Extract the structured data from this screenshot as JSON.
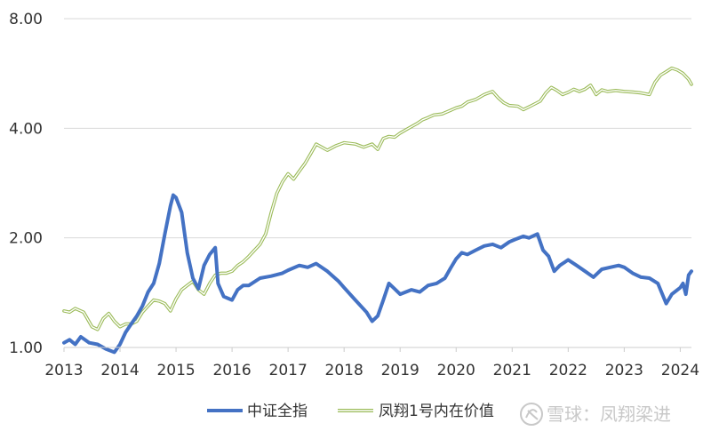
{
  "chart_data": {
    "type": "line",
    "title": "",
    "xlabel": "",
    "ylabel": "",
    "y_scale": "log2",
    "ylim": [
      1.0,
      8.0
    ],
    "xlim": [
      2013.0,
      2024.2
    ],
    "y_ticks": [
      "1.00",
      "2.00",
      "4.00",
      "8.00"
    ],
    "x_ticks": [
      "2013",
      "2014",
      "2015",
      "2016",
      "2017",
      "2018",
      "2019",
      "2020",
      "2021",
      "2022",
      "2023",
      "2024"
    ],
    "grid": "horizontal",
    "legend_position": "bottom",
    "series": [
      {
        "name": "中证全指",
        "color": "#4472c4",
        "style": "solid-thick",
        "points": [
          [
            2013.0,
            1.03
          ],
          [
            2013.1,
            1.05
          ],
          [
            2013.2,
            1.02
          ],
          [
            2013.3,
            1.07
          ],
          [
            2013.45,
            1.03
          ],
          [
            2013.6,
            1.02
          ],
          [
            2013.75,
            0.99
          ],
          [
            2013.9,
            0.97
          ],
          [
            2014.0,
            1.02
          ],
          [
            2014.1,
            1.1
          ],
          [
            2014.2,
            1.16
          ],
          [
            2014.3,
            1.22
          ],
          [
            2014.4,
            1.3
          ],
          [
            2014.5,
            1.42
          ],
          [
            2014.6,
            1.5
          ],
          [
            2014.7,
            1.7
          ],
          [
            2014.8,
            2.05
          ],
          [
            2014.9,
            2.45
          ],
          [
            2014.95,
            2.62
          ],
          [
            2015.0,
            2.58
          ],
          [
            2015.1,
            2.35
          ],
          [
            2015.2,
            1.82
          ],
          [
            2015.3,
            1.55
          ],
          [
            2015.4,
            1.45
          ],
          [
            2015.5,
            1.68
          ],
          [
            2015.6,
            1.8
          ],
          [
            2015.7,
            1.88
          ],
          [
            2015.75,
            1.5
          ],
          [
            2015.85,
            1.38
          ],
          [
            2016.0,
            1.35
          ],
          [
            2016.1,
            1.44
          ],
          [
            2016.2,
            1.48
          ],
          [
            2016.3,
            1.48
          ],
          [
            2016.5,
            1.55
          ],
          [
            2016.7,
            1.57
          ],
          [
            2016.9,
            1.6
          ],
          [
            2017.0,
            1.63
          ],
          [
            2017.2,
            1.68
          ],
          [
            2017.35,
            1.66
          ],
          [
            2017.5,
            1.7
          ],
          [
            2017.7,
            1.62
          ],
          [
            2017.9,
            1.52
          ],
          [
            2018.0,
            1.46
          ],
          [
            2018.2,
            1.35
          ],
          [
            2018.4,
            1.25
          ],
          [
            2018.5,
            1.18
          ],
          [
            2018.6,
            1.22
          ],
          [
            2018.7,
            1.35
          ],
          [
            2018.8,
            1.5
          ],
          [
            2018.9,
            1.45
          ],
          [
            2019.0,
            1.4
          ],
          [
            2019.1,
            1.42
          ],
          [
            2019.2,
            1.44
          ],
          [
            2019.35,
            1.42
          ],
          [
            2019.5,
            1.48
          ],
          [
            2019.65,
            1.5
          ],
          [
            2019.8,
            1.55
          ],
          [
            2019.9,
            1.65
          ],
          [
            2020.0,
            1.75
          ],
          [
            2020.1,
            1.82
          ],
          [
            2020.2,
            1.8
          ],
          [
            2020.35,
            1.85
          ],
          [
            2020.5,
            1.9
          ],
          [
            2020.65,
            1.92
          ],
          [
            2020.8,
            1.88
          ],
          [
            2020.95,
            1.95
          ],
          [
            2021.05,
            1.98
          ],
          [
            2021.2,
            2.02
          ],
          [
            2021.3,
            2.0
          ],
          [
            2021.45,
            2.05
          ],
          [
            2021.55,
            1.85
          ],
          [
            2021.65,
            1.78
          ],
          [
            2021.75,
            1.62
          ],
          [
            2021.85,
            1.68
          ],
          [
            2022.0,
            1.74
          ],
          [
            2022.15,
            1.68
          ],
          [
            2022.3,
            1.62
          ],
          [
            2022.45,
            1.56
          ],
          [
            2022.6,
            1.64
          ],
          [
            2022.75,
            1.66
          ],
          [
            2022.9,
            1.68
          ],
          [
            2023.0,
            1.66
          ],
          [
            2023.15,
            1.6
          ],
          [
            2023.3,
            1.56
          ],
          [
            2023.45,
            1.55
          ],
          [
            2023.6,
            1.5
          ],
          [
            2023.75,
            1.32
          ],
          [
            2023.85,
            1.4
          ],
          [
            2024.0,
            1.46
          ],
          [
            2024.05,
            1.5
          ],
          [
            2024.1,
            1.4
          ],
          [
            2024.15,
            1.58
          ],
          [
            2024.2,
            1.62
          ]
        ]
      },
      {
        "name": "凤翔1号内在价值",
        "color": "#9bbb59",
        "style": "double",
        "points": [
          [
            2013.0,
            1.26
          ],
          [
            2013.1,
            1.25
          ],
          [
            2013.2,
            1.28
          ],
          [
            2013.35,
            1.25
          ],
          [
            2013.5,
            1.14
          ],
          [
            2013.6,
            1.12
          ],
          [
            2013.7,
            1.2
          ],
          [
            2013.8,
            1.24
          ],
          [
            2013.9,
            1.18
          ],
          [
            2014.0,
            1.14
          ],
          [
            2014.1,
            1.16
          ],
          [
            2014.2,
            1.16
          ],
          [
            2014.3,
            1.18
          ],
          [
            2014.4,
            1.25
          ],
          [
            2014.5,
            1.3
          ],
          [
            2014.6,
            1.35
          ],
          [
            2014.7,
            1.34
          ],
          [
            2014.8,
            1.32
          ],
          [
            2014.9,
            1.26
          ],
          [
            2015.0,
            1.36
          ],
          [
            2015.1,
            1.44
          ],
          [
            2015.2,
            1.48
          ],
          [
            2015.3,
            1.52
          ],
          [
            2015.4,
            1.44
          ],
          [
            2015.5,
            1.4
          ],
          [
            2015.6,
            1.5
          ],
          [
            2015.7,
            1.58
          ],
          [
            2015.8,
            1.6
          ],
          [
            2015.9,
            1.6
          ],
          [
            2016.0,
            1.62
          ],
          [
            2016.1,
            1.68
          ],
          [
            2016.2,
            1.72
          ],
          [
            2016.3,
            1.78
          ],
          [
            2016.5,
            1.92
          ],
          [
            2016.6,
            2.05
          ],
          [
            2016.7,
            2.35
          ],
          [
            2016.8,
            2.65
          ],
          [
            2016.9,
            2.85
          ],
          [
            2017.0,
            3.0
          ],
          [
            2017.1,
            2.9
          ],
          [
            2017.2,
            3.05
          ],
          [
            2017.3,
            3.2
          ],
          [
            2017.4,
            3.4
          ],
          [
            2017.5,
            3.62
          ],
          [
            2017.6,
            3.55
          ],
          [
            2017.7,
            3.48
          ],
          [
            2017.85,
            3.58
          ],
          [
            2018.0,
            3.65
          ],
          [
            2018.2,
            3.62
          ],
          [
            2018.35,
            3.55
          ],
          [
            2018.5,
            3.62
          ],
          [
            2018.6,
            3.5
          ],
          [
            2018.7,
            3.75
          ],
          [
            2018.8,
            3.8
          ],
          [
            2018.9,
            3.78
          ],
          [
            2019.0,
            3.88
          ],
          [
            2019.15,
            4.0
          ],
          [
            2019.3,
            4.12
          ],
          [
            2019.4,
            4.22
          ],
          [
            2019.5,
            4.28
          ],
          [
            2019.6,
            4.35
          ],
          [
            2019.75,
            4.38
          ],
          [
            2019.9,
            4.48
          ],
          [
            2020.0,
            4.55
          ],
          [
            2020.1,
            4.6
          ],
          [
            2020.2,
            4.72
          ],
          [
            2020.35,
            4.8
          ],
          [
            2020.5,
            4.95
          ],
          [
            2020.65,
            5.05
          ],
          [
            2020.75,
            4.85
          ],
          [
            2020.85,
            4.7
          ],
          [
            2020.95,
            4.62
          ],
          [
            2021.1,
            4.6
          ],
          [
            2021.2,
            4.5
          ],
          [
            2021.35,
            4.62
          ],
          [
            2021.5,
            4.75
          ],
          [
            2021.6,
            5.0
          ],
          [
            2021.7,
            5.18
          ],
          [
            2021.8,
            5.08
          ],
          [
            2021.9,
            4.95
          ],
          [
            2022.0,
            5.02
          ],
          [
            2022.1,
            5.12
          ],
          [
            2022.2,
            5.05
          ],
          [
            2022.3,
            5.12
          ],
          [
            2022.4,
            5.25
          ],
          [
            2022.5,
            4.95
          ],
          [
            2022.6,
            5.1
          ],
          [
            2022.7,
            5.05
          ],
          [
            2022.85,
            5.08
          ],
          [
            2023.0,
            5.05
          ],
          [
            2023.15,
            5.03
          ],
          [
            2023.3,
            5.0
          ],
          [
            2023.45,
            4.95
          ],
          [
            2023.55,
            5.35
          ],
          [
            2023.65,
            5.6
          ],
          [
            2023.75,
            5.72
          ],
          [
            2023.85,
            5.85
          ],
          [
            2023.95,
            5.78
          ],
          [
            2024.05,
            5.66
          ],
          [
            2024.15,
            5.45
          ],
          [
            2024.2,
            5.28
          ]
        ]
      }
    ],
    "watermark": "雪球：凤翔梁进"
  }
}
